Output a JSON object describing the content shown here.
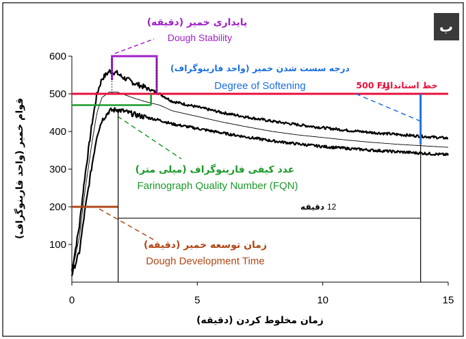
{
  "panel_label": "ب",
  "chart_data": {
    "type": "line",
    "title": "",
    "xlabel": "زمان مخلوط کردن (دقیقه)",
    "ylabel": "قوام خمیر (واحد فارینوگراف)",
    "xlim": [
      0,
      15
    ],
    "ylim": [
      0,
      600
    ],
    "x_ticks": [
      "0",
      "5",
      "10",
      "15"
    ],
    "y_ticks": [
      "100",
      "200",
      "300",
      "400",
      "500",
      "600"
    ],
    "grid": false,
    "series": [
      {
        "role": "upper band",
        "x": [
          0,
          0.3,
          0.5,
          0.8,
          1.0,
          1.2,
          1.5,
          1.8,
          2.0,
          2.5,
          3.0,
          3.5,
          4.0,
          5.0,
          6.0,
          7.0,
          8.0,
          9.0,
          10.0,
          11.0,
          12.0,
          13.0,
          14.0,
          15.0
        ],
        "y": [
          30,
          150,
          270,
          420,
          500,
          540,
          560,
          555,
          545,
          528,
          515,
          500,
          480,
          465,
          450,
          438,
          427,
          418,
          410,
          403,
          397,
          392,
          387,
          382
        ]
      },
      {
        "role": "mean curve",
        "x": [
          0,
          0.3,
          0.5,
          0.8,
          1.0,
          1.2,
          1.5,
          1.8,
          2.0,
          2.5,
          3.0,
          3.5,
          4.0,
          5.0,
          6.0,
          7.0,
          8.0,
          9.0,
          10.0,
          11.0,
          12.0,
          13.0,
          14.0,
          15.0
        ],
        "y": [
          25,
          120,
          230,
          370,
          450,
          490,
          505,
          505,
          500,
          488,
          478,
          470,
          455,
          440,
          425,
          412,
          400,
          391,
          384,
          377,
          371,
          366,
          362,
          358
        ]
      },
      {
        "role": "lower band",
        "x": [
          0,
          0.3,
          0.5,
          0.8,
          1.0,
          1.2,
          1.5,
          1.8,
          2.0,
          2.5,
          3.0,
          3.5,
          4.0,
          5.0,
          6.0,
          7.0,
          8.0,
          9.0,
          10.0,
          11.0,
          12.0,
          13.0,
          14.0,
          15.0
        ],
        "y": [
          20,
          80,
          180,
          310,
          390,
          430,
          455,
          458,
          455,
          445,
          437,
          430,
          420,
          408,
          396,
          385,
          375,
          367,
          360,
          355,
          350,
          346,
          342,
          338
        ]
      }
    ],
    "reference_line": {
      "y": 500,
      "color": "#e8103c",
      "label_fa": "خط استاندارد",
      "label_en": "500 FU"
    },
    "annotations": {
      "stability": {
        "label_fa": "پایداری خمیر (دقیقه)",
        "label_en": "Dough Stability",
        "color": "#a020c8",
        "x_start": 1.0,
        "x_end": 3.6,
        "y": 600
      },
      "softening": {
        "label_fa": "درجه سست شدن خمیر (واحد فارینوگراف)",
        "label_en": "Degree of Softening",
        "color": "#1a6fe0",
        "x": 13.9,
        "y_top": 500,
        "y_bottom": 365
      },
      "fqn": {
        "label_fa": "عدد کیفی فارینوگراف (میلی متر)",
        "label_en": "Farinograph Quality Number (FQN)",
        "color": "#1a9a2a",
        "x_start": 0,
        "x_end": 3.1,
        "y": 470
      },
      "development": {
        "label_fa": "زمان توسعه خمیر (دقیقه)",
        "label_en": "Dough Development Time",
        "color": "#b04818",
        "x_start": 0,
        "x_end": 1.9,
        "y": 200
      },
      "twelve_min": {
        "label_fa": "دقیقه",
        "label_num": "12",
        "x_start": 1.9,
        "x_end": 13.9,
        "y": 170
      }
    }
  },
  "colors": {
    "panel_bg": "#3a3a3a",
    "red": "#e8103c",
    "purple": "#a020c8",
    "blue": "#1a6fe0",
    "green": "#1a9a2a",
    "brown": "#b04818"
  }
}
